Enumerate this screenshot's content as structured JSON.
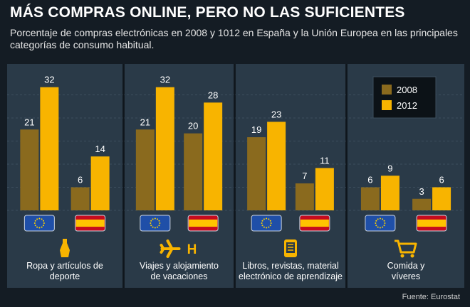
{
  "title": "MÁS COMPRAS ONLINE, PERO NO LAS SUFICIENTES",
  "subtitle": "Porcentaje de compras electrónicas en 2008 y 1012 en España y la Unión Europea en las principales categorías de consumo habitual.",
  "source": "Fuente: Eurostat",
  "colors": {
    "y2008": "#8a6a1e",
    "y2012": "#f8b400",
    "panel": "#2a3a48",
    "background": "#141c24",
    "grid": "#3c4e5e"
  },
  "chart_data": {
    "type": "bar",
    "ylim": [
      0,
      36
    ],
    "legend_position": "top-right",
    "legend": [
      "2008",
      "2012"
    ],
    "categories": [
      {
        "label_lines": [
          "Ropa y artículos de",
          "deporte"
        ],
        "icon": "dress-icon",
        "groups": [
          {
            "region": "Unión Europea",
            "flag": "eu-flag-icon",
            "values": [
              21,
              32
            ]
          },
          {
            "region": "España",
            "flag": "spain-flag-icon",
            "values": [
              6,
              14
            ]
          }
        ]
      },
      {
        "label_lines": [
          "Viajes y alojamiento",
          "de vacaciones"
        ],
        "icon": "plane-hotel-icon",
        "icon_text": "H",
        "groups": [
          {
            "region": "Unión Europea",
            "flag": "eu-flag-icon",
            "values": [
              21,
              32
            ]
          },
          {
            "region": "España",
            "flag": "spain-flag-icon",
            "values": [
              20,
              28
            ]
          }
        ]
      },
      {
        "label_lines": [
          "Libros, revistas, material",
          "electrónico de aprendizaje"
        ],
        "icon": "ebook-icon",
        "groups": [
          {
            "region": "Unión Europea",
            "flag": "eu-flag-icon",
            "values": [
              19,
              23
            ]
          },
          {
            "region": "España",
            "flag": "spain-flag-icon",
            "values": [
              7,
              11
            ]
          }
        ]
      },
      {
        "label_lines": [
          "Comida y",
          "víveres"
        ],
        "icon": "shopping-cart-icon",
        "groups": [
          {
            "region": "Unión Europea",
            "flag": "eu-flag-icon",
            "values": [
              6,
              9
            ]
          },
          {
            "region": "España",
            "flag": "spain-flag-icon",
            "values": [
              3,
              6
            ]
          }
        ]
      }
    ]
  }
}
